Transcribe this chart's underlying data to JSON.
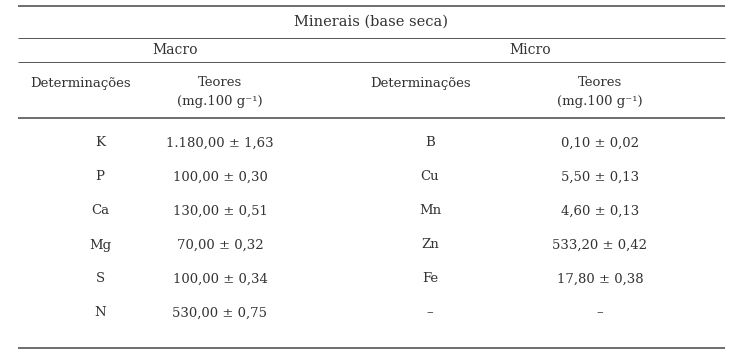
{
  "title": "Minerais (base seca)",
  "col_headers_line1": [
    "Determinações",
    "Teores",
    "Determinações",
    "Teores"
  ],
  "col_headers_line2": [
    "",
    "(mg.100 g⁻¹)",
    "",
    "(mg.100 g⁻¹)"
  ],
  "macro_label": "Macro",
  "micro_label": "Micro",
  "rows": [
    [
      "K",
      "1.180,00 ± 1,63",
      "B",
      "0,10 ± 0,02"
    ],
    [
      "P",
      "100,00 ± 0,30",
      "Cu",
      "5,50 ± 0,13"
    ],
    [
      "Ca",
      "130,00 ± 0,51",
      "Mn",
      "4,60 ± 0,13"
    ],
    [
      "Mg",
      "70,00 ± 0,32",
      "Zn",
      "533,20 ± 0,42"
    ],
    [
      "S",
      "100,00 ± 0,34",
      "Fe",
      "17,80 ± 0,38"
    ],
    [
      "N",
      "530,00 ± 0,75",
      "–",
      "–"
    ]
  ],
  "background_color": "#ffffff",
  "text_color": "#333333",
  "line_color": "#555555",
  "font_size": 9.5,
  "title_font_size": 10.5
}
